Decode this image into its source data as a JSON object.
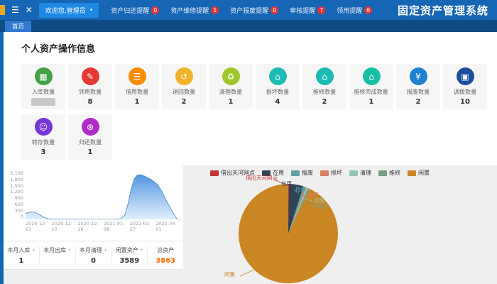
{
  "app": {
    "title": "固定资产管理系统"
  },
  "icons": {
    "menu": "☰",
    "close": "✕",
    "caret": "▾"
  },
  "navbar": {
    "user_label": "欢迎您,管理员",
    "menu": [
      {
        "label": "资产归还提醒",
        "badge": "0"
      },
      {
        "label": "资产维修提醒",
        "badge": "1"
      },
      {
        "label": "资产报废提醒",
        "badge": "0"
      },
      {
        "label": "审核提醒",
        "badge": "7"
      },
      {
        "label": "领用提醒",
        "badge": "6"
      }
    ]
  },
  "tabs": [
    {
      "label": "首页"
    }
  ],
  "section_title": "个人资产操作信息",
  "cards": [
    {
      "label": "入库数量",
      "value": "",
      "redacted": true,
      "icon": "bar-chart-icon",
      "glyph": "▦",
      "color": "#43a047"
    },
    {
      "label": "领用数量",
      "value": "8",
      "icon": "document-icon",
      "glyph": "✎",
      "color": "#e53935"
    },
    {
      "label": "借用数量",
      "value": "1",
      "icon": "layers-icon",
      "glyph": "☰",
      "color": "#fb8c00"
    },
    {
      "label": "退回数量",
      "value": "2",
      "icon": "return-trend-icon",
      "glyph": "↺",
      "color": "#f0b32a"
    },
    {
      "label": "清理数量",
      "value": "1",
      "icon": "clean-icon",
      "glyph": "♻",
      "color": "#9fc728"
    },
    {
      "label": "损坏数量",
      "value": "4",
      "icon": "house-icon",
      "glyph": "⌂",
      "color": "#1cbbb4"
    },
    {
      "label": "维修数量",
      "value": "2",
      "icon": "house-icon",
      "glyph": "⌂",
      "color": "#1cbbb4"
    },
    {
      "label": "维修完成数量",
      "value": "1",
      "icon": "house-check-icon",
      "glyph": "⌂",
      "color": "#17c0a5"
    },
    {
      "label": "报废数量",
      "value": "2",
      "icon": "money-bag-icon",
      "glyph": "¥",
      "color": "#1e82d2"
    },
    {
      "label": "调拨数量",
      "value": "10",
      "icon": "copy-icon",
      "glyph": "▣",
      "color": "#1b4f9e"
    },
    {
      "label": "转存数量",
      "value": "3",
      "icon": "person-icon",
      "glyph": "☺",
      "color": "#7636d8"
    },
    {
      "label": "归还数量",
      "value": "1",
      "icon": "return-icon",
      "glyph": "⊛",
      "color": "#b02cc8"
    }
  ],
  "stats": [
    {
      "label": "本月入库",
      "value": "1"
    },
    {
      "label": "本月出库",
      "value": ""
    },
    {
      "label": "本月清理",
      "value": "0"
    },
    {
      "label": "闲置资产",
      "value": "3589"
    },
    {
      "label": "总资产",
      "value": "3863",
      "highlight": true
    }
  ],
  "chart_data": [
    {
      "type": "area",
      "x_tick_labels": [
        "2020-12-03",
        "2020-12-10",
        "2020-12-16",
        "2021-01-08",
        "2021-01-27",
        "2021-04-01"
      ],
      "y_tick_labels": [
        "2,100",
        "1,800",
        "1,500",
        "1,200",
        "900",
        "600",
        "300",
        "0"
      ],
      "ylim": [
        0,
        2100
      ],
      "x_unit": "fraction-of-axis",
      "area_color_top": "#4a8ede",
      "area_color_bottom": "#dcedfc",
      "grid": false,
      "series": [
        {
          "points": [
            [
              0,
              260
            ],
            [
              0.03,
              320
            ],
            [
              0.06,
              310
            ],
            [
              0.09,
              200
            ],
            [
              0.12,
              80
            ],
            [
              0.15,
              20
            ],
            [
              0.2,
              5
            ],
            [
              0.3,
              2
            ],
            [
              0.45,
              1
            ],
            [
              0.57,
              2
            ],
            [
              0.61,
              15
            ],
            [
              0.64,
              200
            ],
            [
              0.66,
              700
            ],
            [
              0.68,
              1350
            ],
            [
              0.7,
              1780
            ],
            [
              0.72,
              1930
            ],
            [
              0.74,
              1950
            ],
            [
              0.76,
              1900
            ],
            [
              0.79,
              1800
            ],
            [
              0.82,
              1680
            ],
            [
              0.85,
              1500
            ],
            [
              0.88,
              1180
            ],
            [
              0.91,
              760
            ],
            [
              0.94,
              380
            ],
            [
              0.96,
              150
            ],
            [
              0.975,
              0
            ]
          ]
        }
      ]
    },
    {
      "type": "pie",
      "legend_position": "top",
      "total": 3863,
      "slices": [
        {
          "name": "借出天河网点",
          "value": 10,
          "color": "#c23531"
        },
        {
          "name": "在用",
          "value": 180,
          "color": "#2f4554"
        },
        {
          "name": "报废",
          "value": 25,
          "color": "#61a0a8"
        },
        {
          "name": "损坏",
          "value": 15,
          "color": "#d48265"
        },
        {
          "name": "清理",
          "value": 24,
          "color": "#91c7ae"
        },
        {
          "name": "维修",
          "value": 20,
          "color": "#749f83"
        },
        {
          "name": "闲置",
          "value": 3589,
          "color": "#ca8622"
        }
      ]
    }
  ]
}
